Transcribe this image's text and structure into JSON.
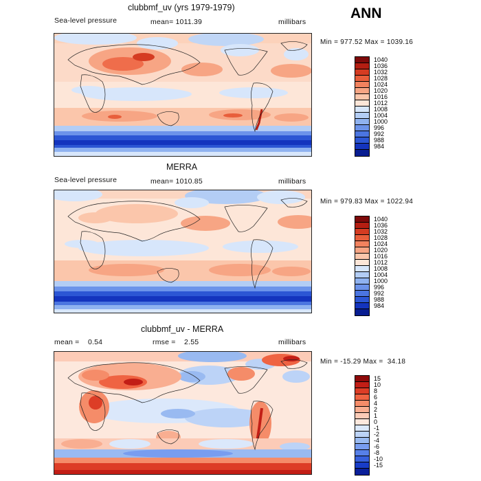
{
  "season": "ANN",
  "panels": [
    {
      "title": "clubbmf_uv (yrs 1979-1979)",
      "left_label": "Sea-level pressure",
      "mid_label": "mean= 1011.39",
      "units": "millibars",
      "minmax": "Min = 977.52 Max = 1039.16"
    },
    {
      "title": "MERRA",
      "left_label": "Sea-level pressure",
      "mid_label": "mean= 1010.85",
      "units": "millibars",
      "minmax": "Min = 979.83 Max = 1022.94"
    },
    {
      "title": "clubbmf_uv - MERRA",
      "left_label": "mean =    0.54",
      "mid_label": "rmse =    2.55",
      "units": "millibars",
      "minmax": "Min = -15.29 Max =  34.18"
    }
  ],
  "colorbars": {
    "pressure": {
      "labels": [
        "1040",
        "1036",
        "1032",
        "1028",
        "1024",
        "1020",
        "1016",
        "1012",
        "1008",
        "1004",
        "1000",
        "996",
        "992",
        "988",
        "984"
      ],
      "colors": [
        "#7e0a0a",
        "#b41e12",
        "#d53c22",
        "#e85e3b",
        "#f2825e",
        "#f7a584",
        "#fbc6ab",
        "#fde6d8",
        "#d7e6fb",
        "#b3cdf5",
        "#8fb2f0",
        "#6c93ea",
        "#4b75e0",
        "#2c56d4",
        "#1434be",
        "#081d91"
      ]
    },
    "difference": {
      "labels": [
        "15",
        "10",
        "8",
        "6",
        "4",
        "2",
        "1",
        "0",
        "-1",
        "-2",
        "-4",
        "-6",
        "-8",
        "-10",
        "-15"
      ],
      "colors": [
        "#8e0a0a",
        "#c21e16",
        "#dd3d26",
        "#ef6342",
        "#f58c69",
        "#f9ae91",
        "#fccbb7",
        "#fde8dd",
        "#dbe8fb",
        "#bcd3f7",
        "#99baf1",
        "#789df0",
        "#5780e8",
        "#3760dc",
        "#183cc8",
        "#0a1f9a"
      ]
    }
  }
}
